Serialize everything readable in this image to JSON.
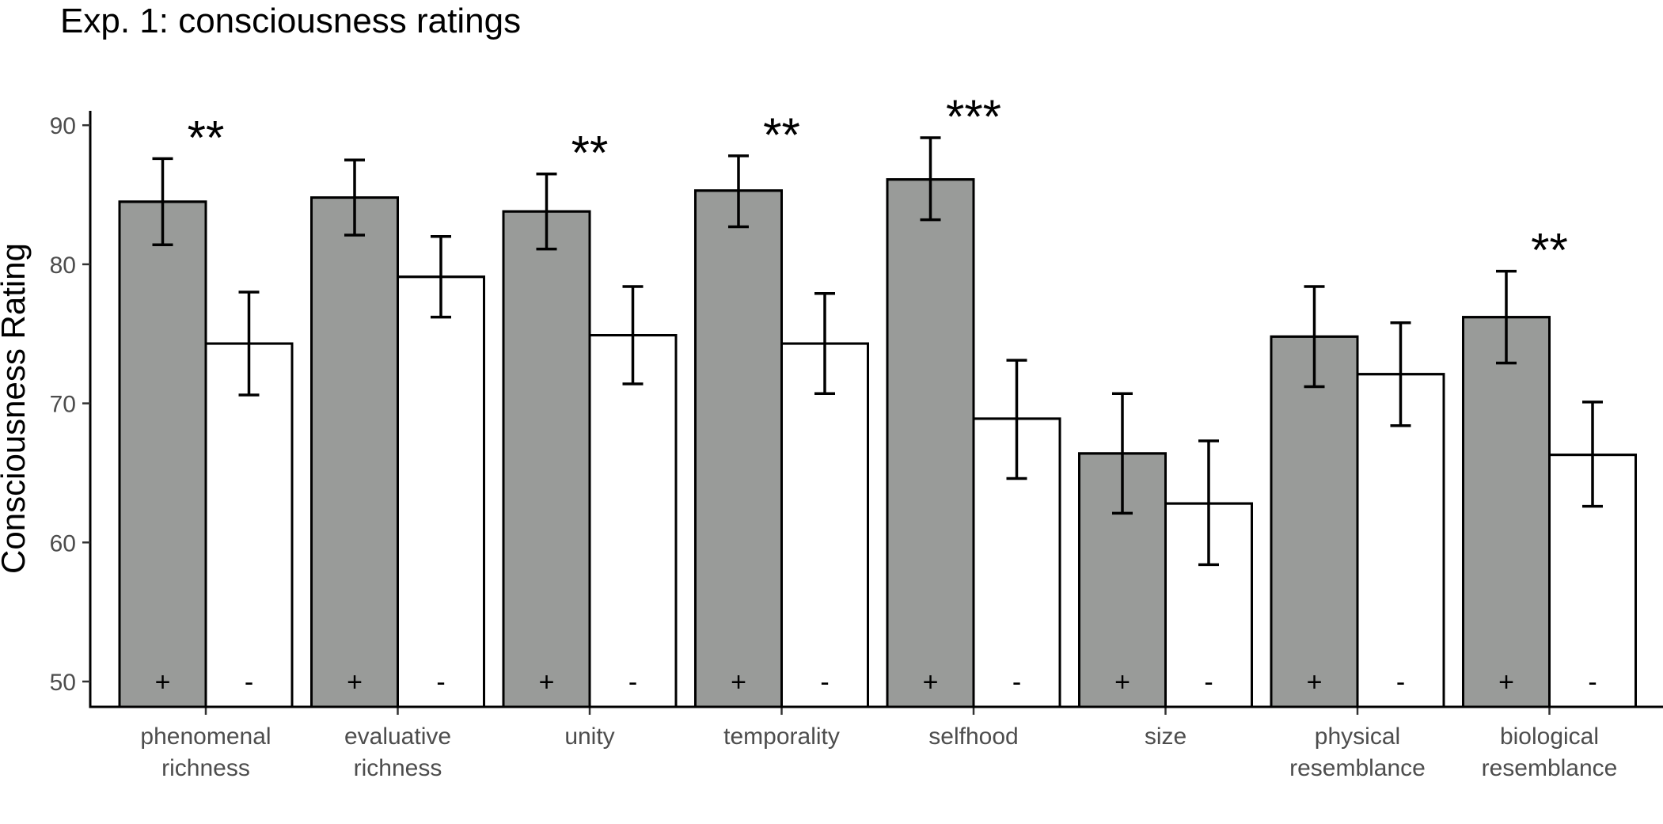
{
  "chart_data": {
    "type": "bar",
    "title": "Exp. 1: consciousness ratings",
    "ylabel": "Consciousness Rating",
    "xlabel": "",
    "ylim": [
      49,
      91
    ],
    "yticks": [
      50,
      60,
      70,
      80,
      90
    ],
    "grid": false,
    "legend": "none",
    "categories": [
      [
        "phenomenal",
        "richness"
      ],
      [
        "evaluative",
        "richness"
      ],
      [
        "unity"
      ],
      [
        "temporality"
      ],
      [
        "selfhood"
      ],
      [
        "size"
      ],
      [
        "physical",
        "resemblance"
      ],
      [
        "biological",
        "resemblance"
      ]
    ],
    "condition_labels": [
      "+",
      "-"
    ],
    "series": [
      {
        "values": [
          84.5,
          84.8,
          83.8,
          85.3,
          86.1,
          66.4,
          74.8,
          76.2
        ],
        "err_low": [
          81.4,
          82.1,
          81.1,
          82.7,
          83.2,
          62.1,
          71.2,
          72.9
        ],
        "err_high": [
          87.6,
          87.5,
          86.5,
          87.8,
          89.1,
          70.7,
          78.4,
          79.5
        ],
        "color": "#999b99"
      },
      {
        "values": [
          74.3,
          79.1,
          74.9,
          74.3,
          68.9,
          62.8,
          72.1,
          66.3
        ],
        "err_low": [
          70.6,
          76.2,
          71.4,
          70.7,
          64.6,
          58.4,
          68.4,
          62.6
        ],
        "err_high": [
          78.0,
          82.0,
          78.4,
          77.9,
          73.1,
          67.3,
          75.8,
          70.1
        ],
        "color": "#ffffff"
      }
    ],
    "significance": [
      "**",
      "",
      "**",
      "**",
      "***",
      "",
      "",
      "**"
    ],
    "strip_colors": [
      [
        "#948b78",
        "#efe4b6"
      ],
      [
        "#98727b",
        "#e5adb2"
      ],
      [
        "#8c6f8c",
        "#d09ccc"
      ],
      [
        "#7e5a69",
        "#bb8494"
      ],
      [
        "#9d675e",
        "#f5967b"
      ],
      [
        "#5f7a5f",
        "#8caa88"
      ],
      [
        "#6f8c84",
        "#a1ccc3"
      ],
      [
        "#7a9098",
        "#c1e2f5"
      ]
    ]
  }
}
